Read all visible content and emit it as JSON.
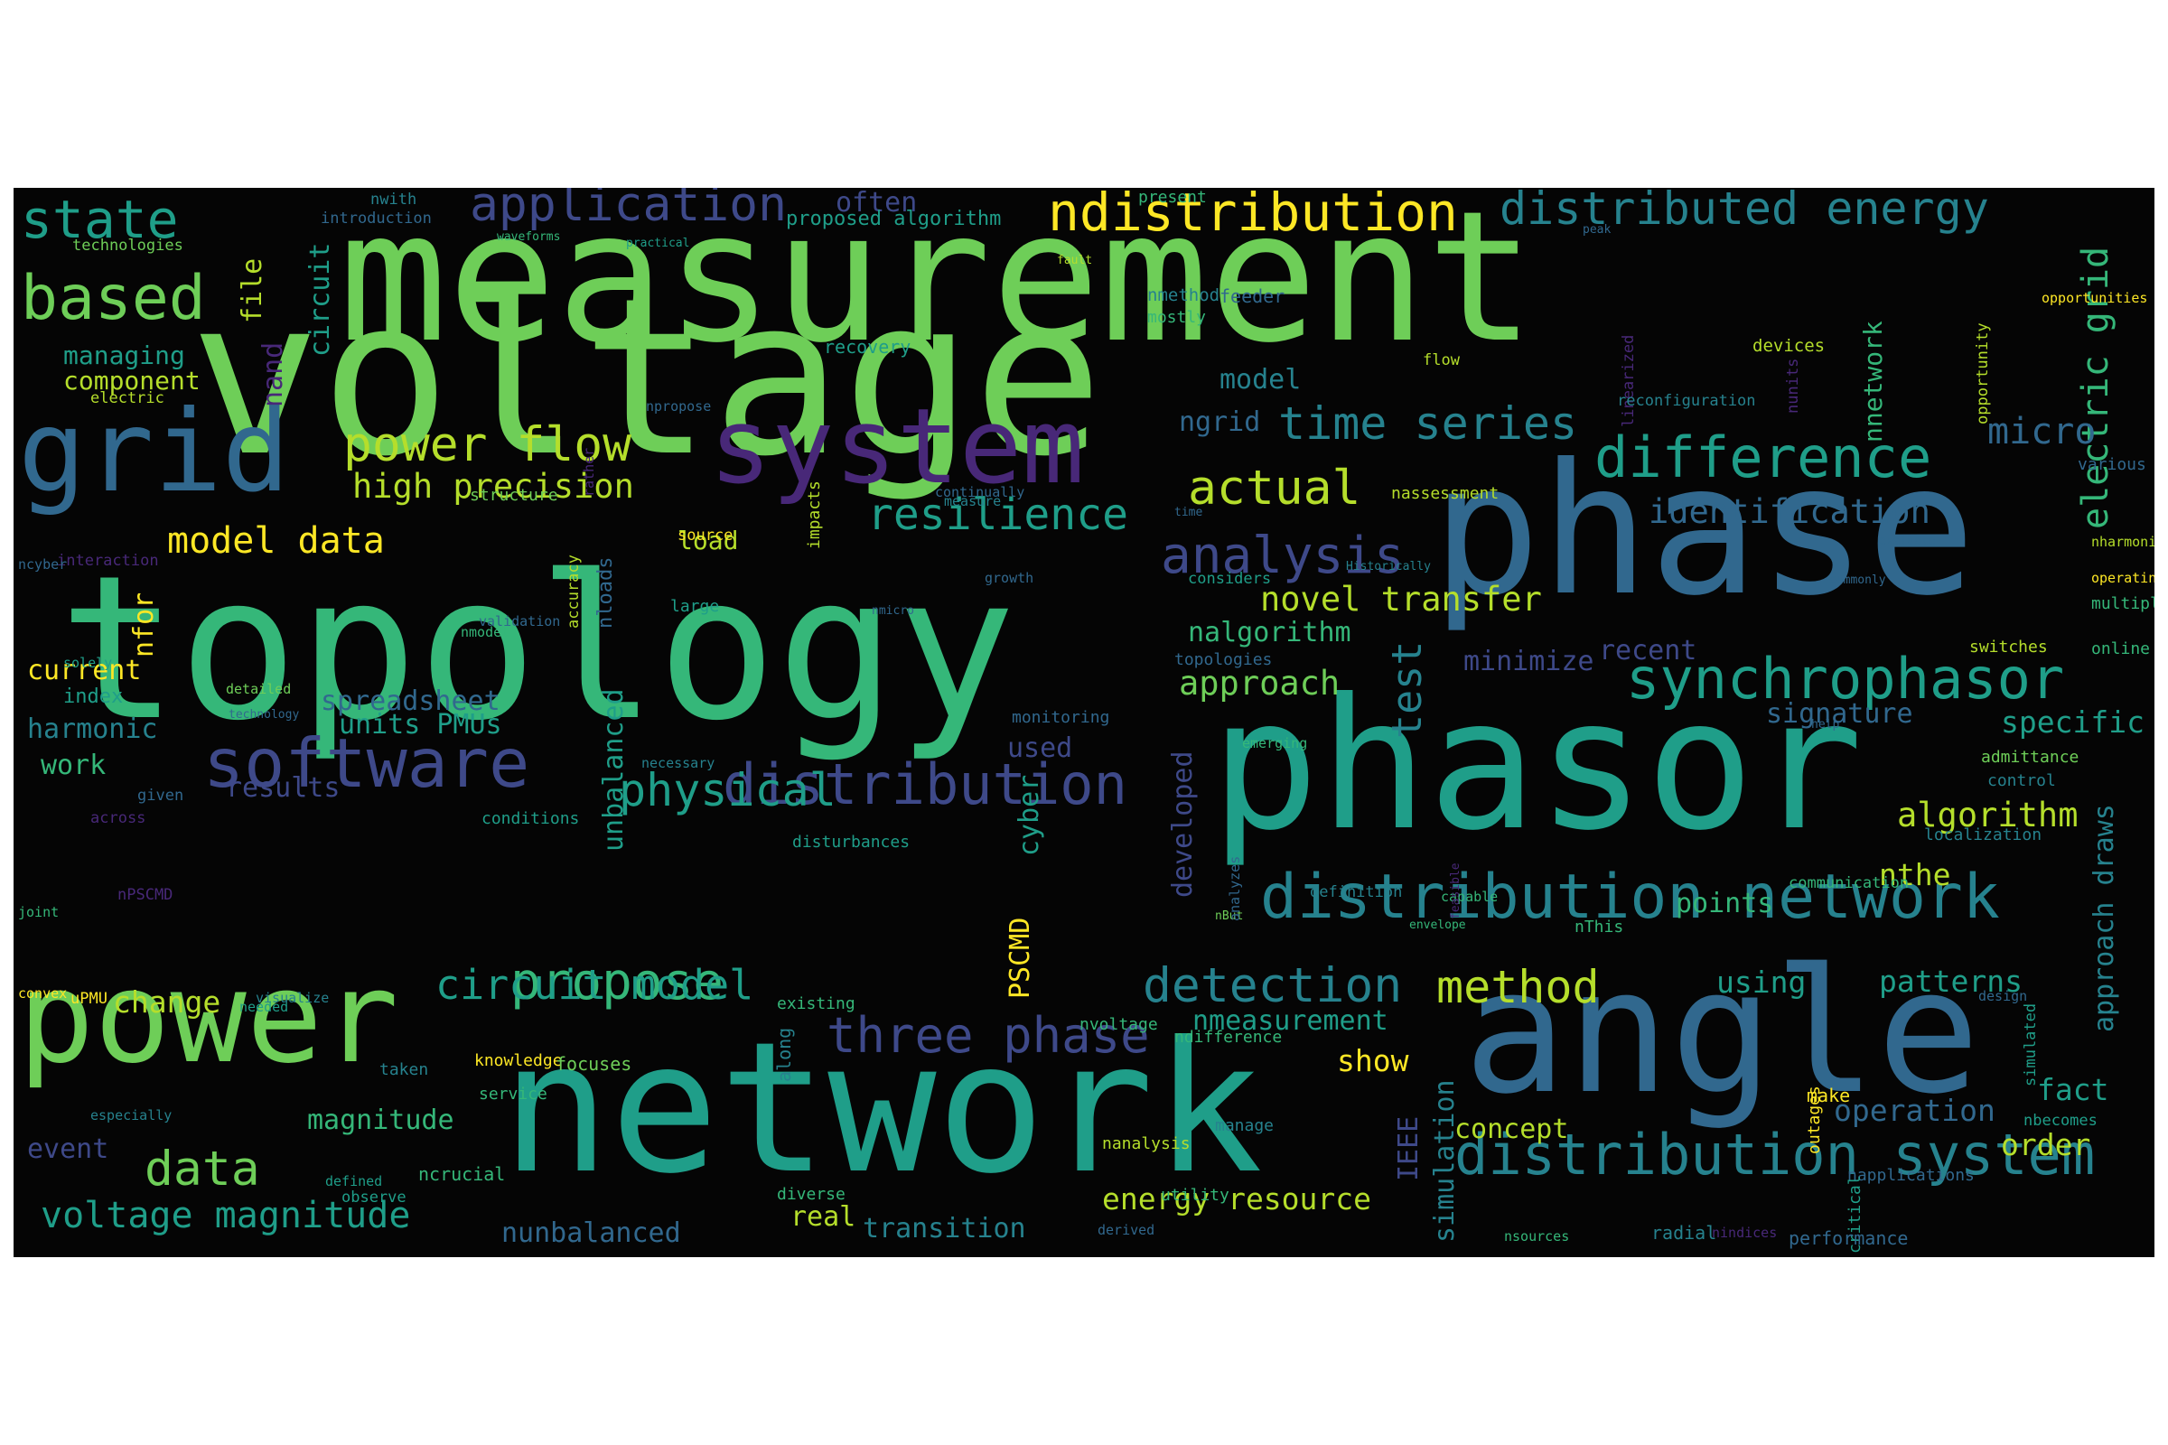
{
  "colors": {
    "background": "#050505",
    "page": "#ffffff",
    "palette": [
      "#fde725",
      "#b5de2b",
      "#6ece58",
      "#35b779",
      "#1f9e89",
      "#26828e",
      "#31688e",
      "#3e4989",
      "#482878",
      "#440154"
    ]
  },
  "words": [
    "measurement",
    "voltage",
    "topology",
    "phase",
    "phasor",
    "network",
    "angle",
    "power",
    "grid",
    "system",
    "software",
    "distribution network",
    "distribution",
    "synchrophasor",
    "distribution system",
    "difference",
    "ndistribution",
    "application",
    "distributed energy",
    "state",
    "based",
    "power flow",
    "resilience",
    "analysis",
    "three phase",
    "propose",
    "circuit model",
    "physical",
    "detection",
    "method",
    "actual",
    "time series",
    "voltage magnitude",
    "data",
    "model data",
    "high precision",
    "electric grid",
    "micro",
    "identification",
    "test",
    "approach",
    "nalgorithm",
    "novel transfer",
    "ngrid",
    "model",
    "algorithm",
    "specific",
    "signature",
    "recent",
    "minimize",
    "nthe",
    "points",
    "approach draws",
    "patterns",
    "using",
    "operation",
    "order",
    "fact",
    "nmeasurement",
    "show",
    "concept",
    "energy resource",
    "real",
    "transition",
    "nunbalanced",
    "magnitude",
    "change",
    "event",
    "harmonic",
    "work",
    "results",
    "units PMUs",
    "spreadsheet",
    "used",
    "unbalanced",
    "developed",
    "PSCMD",
    "cyber",
    "simulation",
    "IEEE",
    "current",
    "index",
    "nfor",
    "nand",
    "circuit",
    "file",
    "managing",
    "component",
    "often",
    "proposed algorithm",
    "nnetwork",
    "nmethod",
    "load",
    "introduction",
    "technologies",
    "electric",
    "nwith",
    "recovery",
    "feeder",
    "devices",
    "flow",
    "linearized",
    "nunits",
    "opportunity",
    "various",
    "opportunities",
    "nassessment",
    "reconfiguration",
    "time",
    "nharmonic",
    "operating",
    "multiple",
    "online",
    "switches",
    "admittance",
    "control",
    "localization",
    "communication",
    "definition",
    "capable",
    "nBut",
    "envelope",
    "design",
    "analyzes",
    "feasible",
    "simulated",
    "nbecomes",
    "outages",
    "napplications",
    "critical",
    "performance",
    "nindices",
    "radial",
    "nsources",
    "derived",
    "utility",
    "manage",
    "ncrucial",
    "defined",
    "observe",
    "especially",
    "knowledge",
    "taken",
    "service",
    "existing",
    "needed",
    "visualize",
    "uPMU",
    "convex",
    "joint",
    "nPSCMD",
    "across",
    "given",
    "conditions",
    "disturbances",
    "necessary",
    "emerging",
    "monitoring",
    "technology",
    "detailed",
    "solely",
    "interaction",
    "ncyber",
    "nmodel",
    "accuracy",
    "large",
    "validation",
    "nloads",
    "nmicro",
    "source",
    "rather",
    "growth",
    "considers",
    "measure",
    "continually",
    "structure",
    "npropose",
    "mostly",
    "impacts",
    "practical",
    "waveforms",
    "present",
    "fault",
    "peak",
    "Historically",
    "evaluate",
    "commonly",
    "help",
    "nthat",
    "nThis",
    "topologies",
    "nvoltage",
    "ndifference",
    "nanalysis",
    "diverse",
    "along",
    "focuses",
    "make"
  ]
}
